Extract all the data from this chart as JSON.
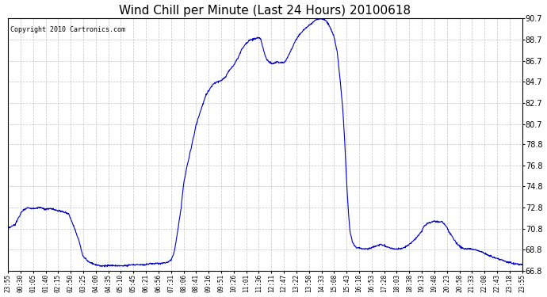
{
  "title": "Wind Chill per Minute (Last 24 Hours) 20100618",
  "copyright": "Copyright 2010 Cartronics.com",
  "ylim": [
    66.8,
    90.7
  ],
  "yticks": [
    66.8,
    68.8,
    70.8,
    72.8,
    74.8,
    76.8,
    78.8,
    80.7,
    82.7,
    84.7,
    86.7,
    88.7,
    90.7
  ],
  "line_color": "#0000cc",
  "bg_color": "#ffffff",
  "grid_color": "#aaaaaa",
  "xtick_labels": [
    "23:55",
    "00:30",
    "01:05",
    "01:40",
    "02:15",
    "02:50",
    "03:25",
    "04:00",
    "04:35",
    "05:10",
    "05:45",
    "06:21",
    "06:56",
    "07:31",
    "08:06",
    "08:41",
    "09:16",
    "09:51",
    "10:26",
    "11:01",
    "11:36",
    "12:11",
    "12:47",
    "13:22",
    "13:58",
    "14:33",
    "15:08",
    "15:43",
    "16:18",
    "16:53",
    "17:28",
    "18:03",
    "18:38",
    "19:13",
    "19:48",
    "20:23",
    "20:58",
    "21:33",
    "22:08",
    "22:43",
    "23:18",
    "23:55"
  ]
}
